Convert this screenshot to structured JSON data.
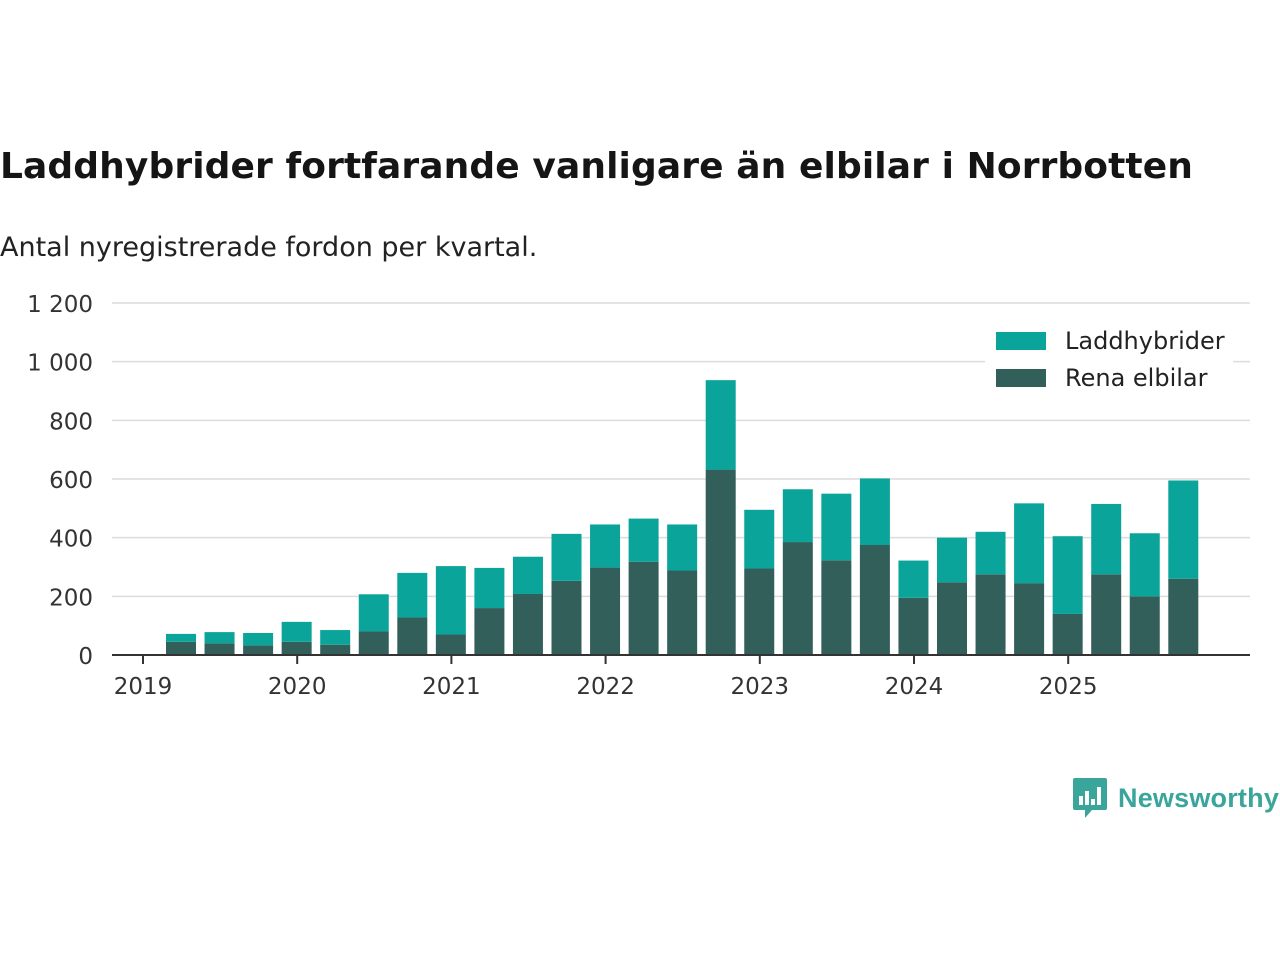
{
  "title": "Laddhybrider fortfarande vanligare än elbilar i Norrbotten",
  "subtitle": "Antal nyregistrerade fordon per kvartal.",
  "logo_text": "Newsworthy",
  "chart_data": {
    "type": "bar",
    "stacked": true,
    "categories": [
      "2019 Q2",
      "2019 Q3",
      "2019 Q4",
      "2020 Q1",
      "2020 Q2",
      "2020 Q3",
      "2020 Q4",
      "2021 Q1",
      "2021 Q2",
      "2021 Q3",
      "2021 Q4",
      "2022 Q1",
      "2022 Q2",
      "2022 Q3",
      "2022 Q4",
      "2023 Q1",
      "2023 Q2",
      "2023 Q3",
      "2023 Q4",
      "2024 Q1",
      "2024 Q2",
      "2024 Q3",
      "2024 Q4",
      "2025 Q1",
      "2025 Q2",
      "2025 Q3",
      "2025 Q4"
    ],
    "series": [
      {
        "name": "Rena elbilar",
        "color": "#335f5b",
        "values": [
          45,
          40,
          33,
          45,
          35,
          80,
          128,
          70,
          160,
          208,
          253,
          298,
          318,
          288,
          632,
          295,
          385,
          323,
          375,
          195,
          248,
          275,
          245,
          140,
          275,
          200,
          260
        ]
      },
      {
        "name": "Laddhybrider",
        "color": "#0aa49a",
        "values": [
          27,
          38,
          42,
          68,
          50,
          127,
          152,
          233,
          137,
          127,
          160,
          147,
          147,
          157,
          305,
          200,
          180,
          227,
          227,
          127,
          152,
          145,
          272,
          265,
          240,
          215,
          335
        ]
      }
    ],
    "legend": [
      "Laddhybrider",
      "Rena elbilar"
    ],
    "legend_position": "top-right",
    "x_ticks": [
      "2019",
      "2020",
      "2021",
      "2022",
      "2023",
      "2024",
      "2025"
    ],
    "y_ticks": [
      0,
      200,
      400,
      600,
      800,
      1000,
      1200
    ],
    "y_tick_labels": [
      "0",
      "200",
      "400",
      "600",
      "800",
      "1 000",
      "1 200"
    ],
    "ylim": [
      0,
      1200
    ],
    "grid": true,
    "xlabel": "",
    "ylabel": ""
  }
}
